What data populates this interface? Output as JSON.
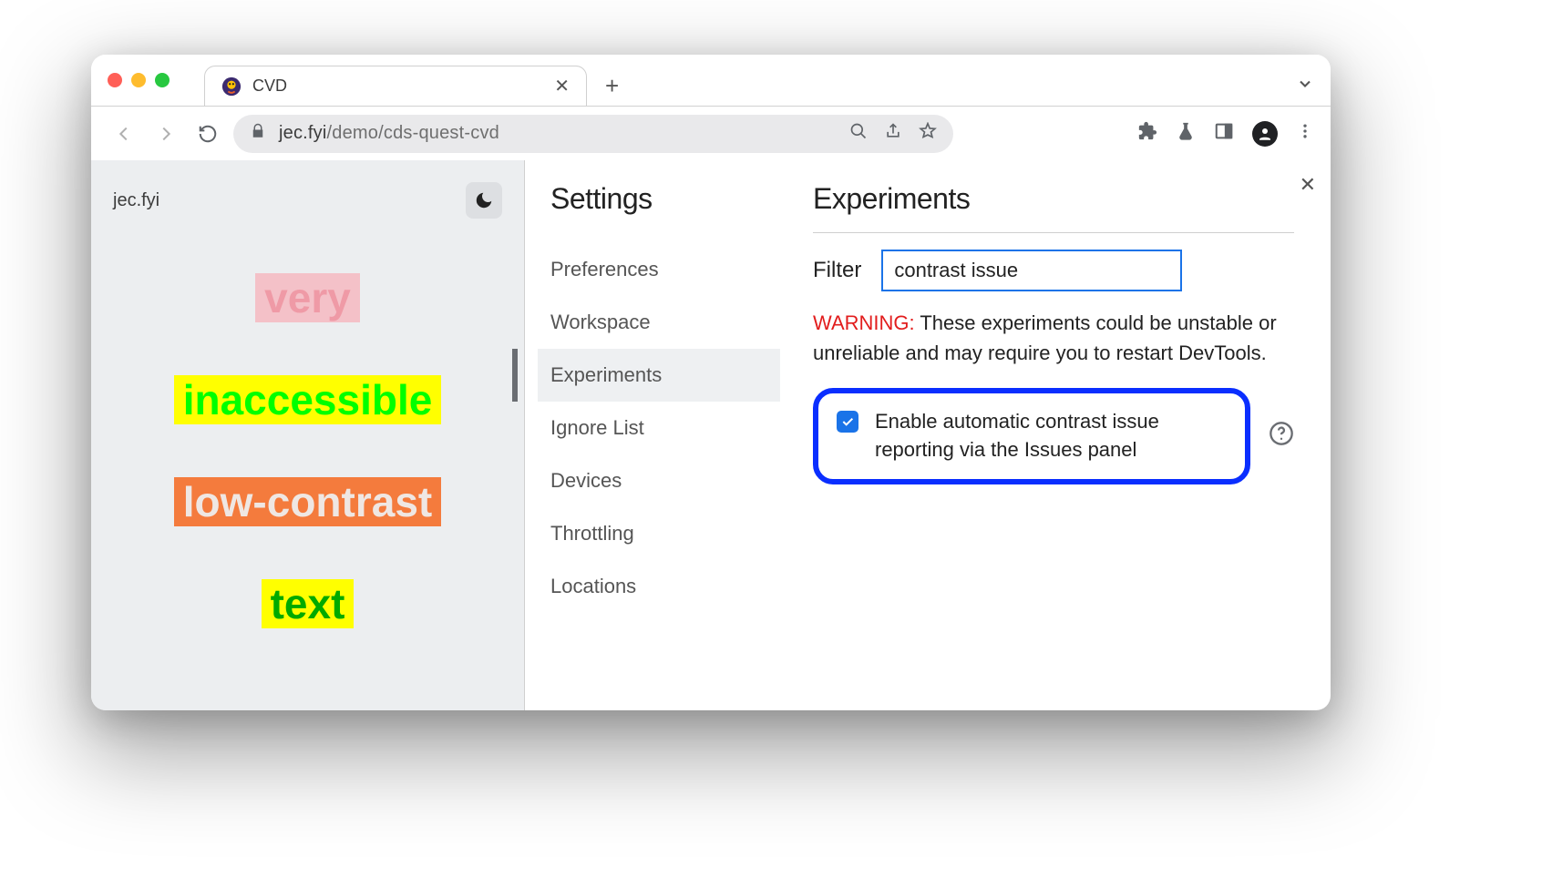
{
  "window": {
    "tab_title": "CVD",
    "url_host": "jec.fyi",
    "url_path": "/demo/cds-quest-cvd"
  },
  "page": {
    "site_title": "jec.fyi",
    "words": [
      "very",
      "inaccessible",
      "low-contrast",
      "text"
    ],
    "word_styles": [
      {
        "bg": "#f4c1c8",
        "fg": "#ef9aa6"
      },
      {
        "bg": "#ffff00",
        "fg": "#00ff00"
      },
      {
        "bg": "#f47b3d",
        "fg": "#efe7e3"
      },
      {
        "bg": "#ffff00",
        "fg": "#00aa00"
      }
    ]
  },
  "settings": {
    "title": "Settings",
    "items": [
      "Preferences",
      "Workspace",
      "Experiments",
      "Ignore List",
      "Devices",
      "Throttling",
      "Locations"
    ],
    "active_index": 2
  },
  "experiments": {
    "title": "Experiments",
    "filter_label": "Filter",
    "filter_value": "contrast issue",
    "warning_prefix": "WARNING:",
    "warning_text": " These experiments could be unstable or unreliable and may require you to restart DevTools.",
    "item_label": "Enable automatic contrast issue reporting via the Issues panel",
    "item_checked": true,
    "highlight_color": "#0a2eff"
  }
}
